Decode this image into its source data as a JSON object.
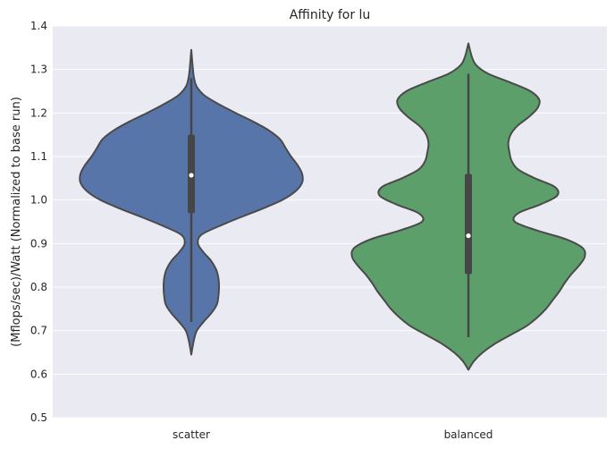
{
  "chart_data": {
    "type": "violin",
    "title": "Affinity for lu",
    "xlabel": "",
    "ylabel": "(Mflops/sec)/Watt (Normalized to base run)",
    "ylim": [
      0.5,
      1.4
    ],
    "yticks": [
      "0.5",
      "0.6",
      "0.7",
      "0.8",
      "0.9",
      "1.0",
      "1.1",
      "1.2",
      "1.3",
      "1.4"
    ],
    "grid": true,
    "categories": [
      "scatter",
      "balanced"
    ],
    "series": [
      {
        "category": "scatter",
        "color": "#5875a9",
        "median": 1.057,
        "q1": 0.97,
        "q3": 1.15,
        "whisker_low": 0.72,
        "whisker_high": 1.28,
        "density": [
          [
            0.645,
            0.0
          ],
          [
            0.66,
            0.01
          ],
          [
            0.68,
            0.025
          ],
          [
            0.7,
            0.05
          ],
          [
            0.72,
            0.11
          ],
          [
            0.74,
            0.18
          ],
          [
            0.76,
            0.23
          ],
          [
            0.78,
            0.245
          ],
          [
            0.8,
            0.25
          ],
          [
            0.82,
            0.245
          ],
          [
            0.84,
            0.225
          ],
          [
            0.86,
            0.18
          ],
          [
            0.88,
            0.11
          ],
          [
            0.9,
            0.06
          ],
          [
            0.92,
            0.09
          ],
          [
            0.94,
            0.25
          ],
          [
            0.96,
            0.44
          ],
          [
            0.98,
            0.64
          ],
          [
            1.0,
            0.82
          ],
          [
            1.02,
            0.94
          ],
          [
            1.04,
            1.0
          ],
          [
            1.06,
            1.0
          ],
          [
            1.08,
            0.96
          ],
          [
            1.1,
            0.9
          ],
          [
            1.12,
            0.85
          ],
          [
            1.14,
            0.8
          ],
          [
            1.16,
            0.7
          ],
          [
            1.18,
            0.56
          ],
          [
            1.2,
            0.4
          ],
          [
            1.22,
            0.25
          ],
          [
            1.24,
            0.12
          ],
          [
            1.26,
            0.05
          ],
          [
            1.28,
            0.025
          ],
          [
            1.3,
            0.015
          ],
          [
            1.32,
            0.008
          ],
          [
            1.345,
            0.0
          ]
        ]
      },
      {
        "category": "balanced",
        "color": "#5c9f6a",
        "median": 0.918,
        "q1": 0.83,
        "q3": 1.06,
        "whisker_low": 0.685,
        "whisker_high": 1.29,
        "density": [
          [
            0.61,
            0.0
          ],
          [
            0.63,
            0.05
          ],
          [
            0.65,
            0.13
          ],
          [
            0.67,
            0.24
          ],
          [
            0.69,
            0.38
          ],
          [
            0.71,
            0.52
          ],
          [
            0.73,
            0.62
          ],
          [
            0.75,
            0.7
          ],
          [
            0.77,
            0.76
          ],
          [
            0.79,
            0.82
          ],
          [
            0.81,
            0.87
          ],
          [
            0.83,
            0.93
          ],
          [
            0.85,
            1.0
          ],
          [
            0.87,
            1.05
          ],
          [
            0.89,
            1.03
          ],
          [
            0.91,
            0.88
          ],
          [
            0.93,
            0.62
          ],
          [
            0.95,
            0.42
          ],
          [
            0.97,
            0.45
          ],
          [
            0.99,
            0.65
          ],
          [
            1.01,
            0.8
          ],
          [
            1.03,
            0.78
          ],
          [
            1.05,
            0.6
          ],
          [
            1.07,
            0.45
          ],
          [
            1.09,
            0.39
          ],
          [
            1.11,
            0.37
          ],
          [
            1.13,
            0.36
          ],
          [
            1.15,
            0.38
          ],
          [
            1.17,
            0.44
          ],
          [
            1.19,
            0.54
          ],
          [
            1.21,
            0.62
          ],
          [
            1.23,
            0.64
          ],
          [
            1.25,
            0.56
          ],
          [
            1.27,
            0.38
          ],
          [
            1.29,
            0.18
          ],
          [
            1.31,
            0.07
          ],
          [
            1.33,
            0.03
          ],
          [
            1.36,
            0.0
          ]
        ]
      }
    ]
  }
}
